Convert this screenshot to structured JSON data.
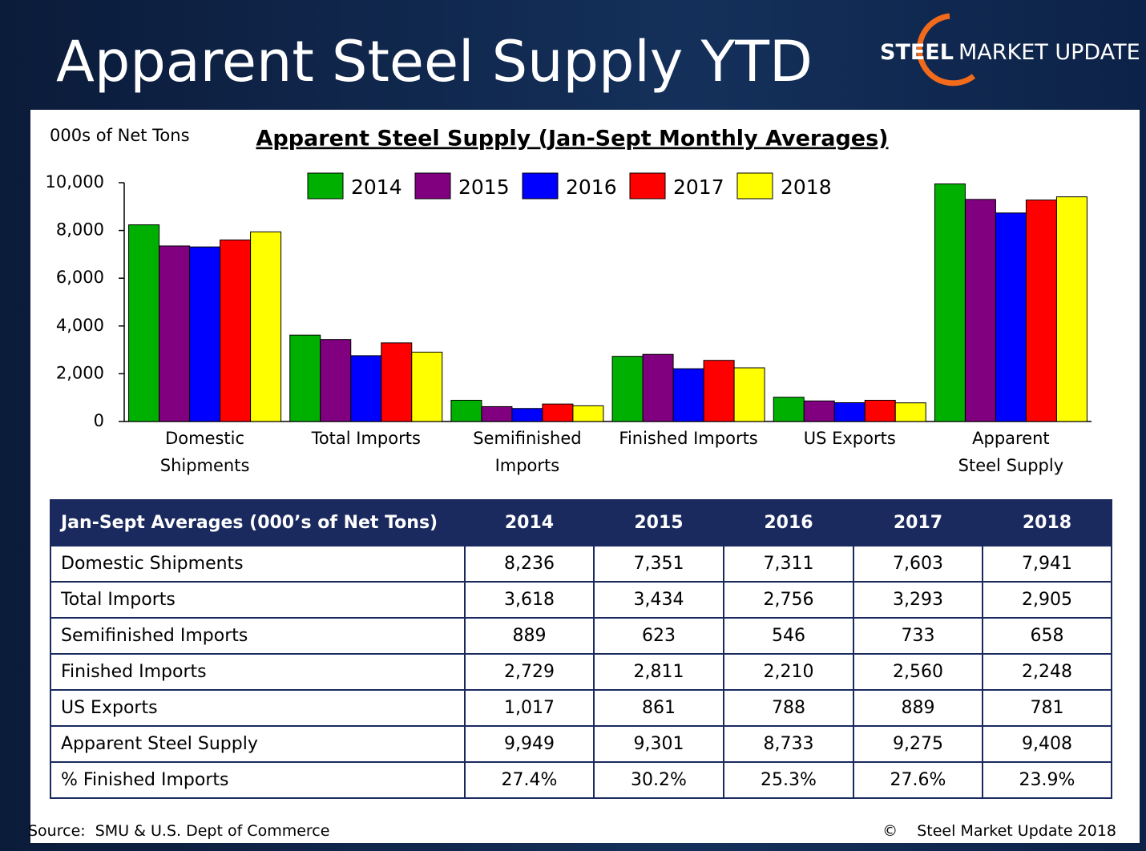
{
  "header": {
    "title": "Apparent Steel Supply YTD",
    "logo": {
      "brand": "STEEL",
      "name": "MARKET UPDATE"
    }
  },
  "chart_data": {
    "type": "bar",
    "title": "Apparent Steel Supply (Jan-Sept Monthly Averages)",
    "y_label": "000s of Net Tons",
    "categories": [
      "Domestic Shipments",
      "Total Imports",
      "Semifinished Imports",
      "Finished Imports",
      "US Exports",
      "Apparent Steel Supply"
    ],
    "series": [
      {
        "name": "2014",
        "color": "#00b000",
        "values": [
          8236,
          3618,
          889,
          2729,
          1017,
          9949
        ]
      },
      {
        "name": "2015",
        "color": "#800080",
        "values": [
          7351,
          3434,
          623,
          2811,
          861,
          9301
        ]
      },
      {
        "name": "2016",
        "color": "#0000ff",
        "values": [
          7311,
          2756,
          546,
          2210,
          788,
          8733
        ]
      },
      {
        "name": "2017",
        "color": "#ff0000",
        "values": [
          7603,
          3293,
          733,
          2560,
          889,
          9275
        ]
      },
      {
        "name": "2018",
        "color": "#ffff00",
        "values": [
          7941,
          2905,
          658,
          2248,
          781,
          9408
        ]
      }
    ],
    "ylim": [
      0,
      10000
    ],
    "yticks": [
      0,
      {
        "value": 2000,
        "label": "2,000"
      },
      {
        "value": 4000,
        "label": "4,000"
      },
      {
        "value": 6000,
        "label": "6,000"
      },
      {
        "value": 8000,
        "label": "8,000"
      },
      {
        "value": 10000,
        "label": "10,000"
      }
    ],
    "grid": false,
    "legend": "top"
  },
  "table": {
    "header": [
      "Jan-Sept Averages (000’s of Net Tons)",
      "2014",
      "2015",
      "2016",
      "2017",
      "2018"
    ],
    "rows": [
      [
        "Domestic Shipments",
        "8,236",
        "7,351",
        "7,311",
        "7,603",
        "7,941"
      ],
      [
        "Total Imports",
        "3,618",
        "3,434",
        "2,756",
        "3,293",
        "2,905"
      ],
      [
        "Semifinished Imports",
        "889",
        "623",
        "546",
        "733",
        "658"
      ],
      [
        "Finished Imports",
        "2,729",
        "2,811",
        "2,210",
        "2,560",
        "2,248"
      ],
      [
        "US Exports",
        "1,017",
        "861",
        "788",
        "889",
        "781"
      ],
      [
        "Apparent Steel Supply",
        "9,949",
        "9,301",
        "8,733",
        "9,275",
        "9,408"
      ],
      [
        "% Finished Imports",
        "27.4%",
        "30.2%",
        "25.3%",
        "27.6%",
        "23.9%"
      ]
    ]
  },
  "footer": {
    "source": "Source:  SMU & U.S. Dept of Commerce",
    "copyright": "©    Steel Market Update 2018"
  }
}
